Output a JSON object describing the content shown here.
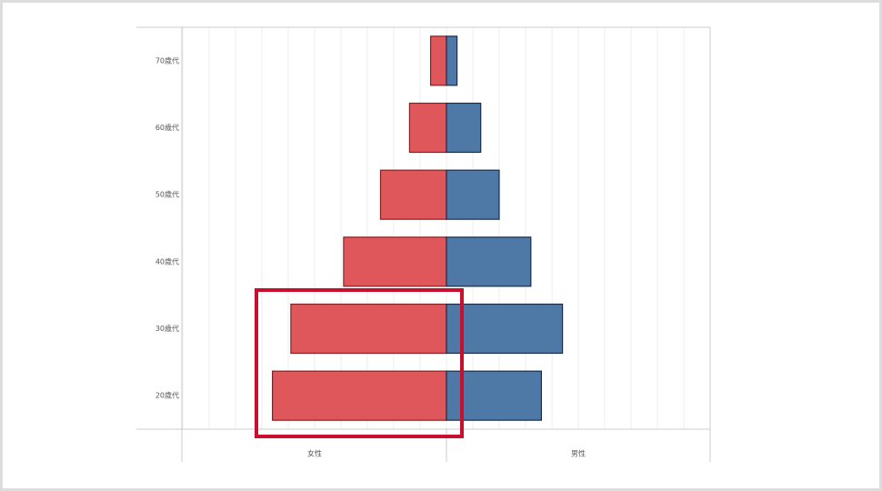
{
  "chart_data": {
    "type": "pyramid",
    "categories": [
      "70歳代",
      "60歳代",
      "50歳代",
      "40歳代",
      "30歳代",
      "20歳代"
    ],
    "series": [
      {
        "name": "女性",
        "color": "#e0575b",
        "values": [
          6,
          14,
          25,
          39,
          59,
          66
        ]
      },
      {
        "name": "男性",
        "color": "#4e79a7",
        "values": [
          4,
          13,
          20,
          32,
          44,
          36
        ]
      }
    ],
    "xlim": [
      0,
      100
    ],
    "xticks": [
      0,
      10,
      20,
      30,
      40,
      50,
      60,
      70,
      80,
      90,
      100
    ],
    "grid": true
  }
}
